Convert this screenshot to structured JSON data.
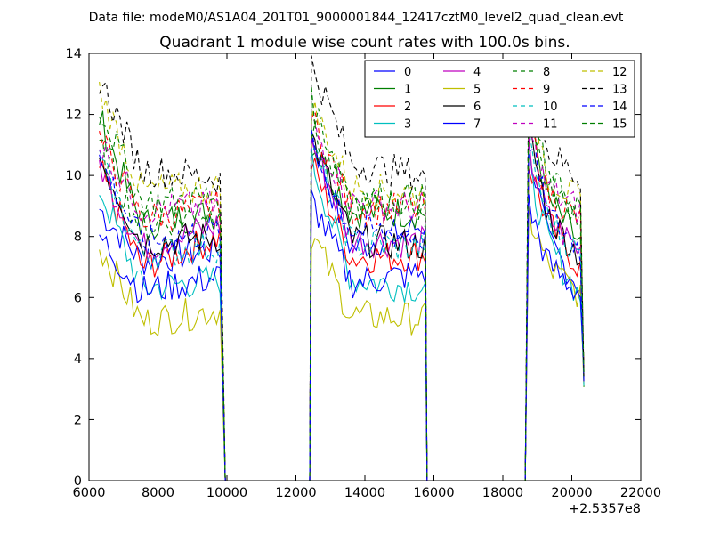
{
  "suptitle": "Data file: modeM0/AS1A04_201T01_9000001844_12417cztM0_level2_quad_clean.evt",
  "chart_data": {
    "type": "line",
    "title": "Quadrant 1 module wise count rates with 100.0s bins.",
    "xlabel": "",
    "ylabel": "",
    "xlim": [
      6000,
      22000
    ],
    "ylim": [
      0,
      14
    ],
    "x_offset_label": "+2.5357e8",
    "x_ticks": [
      6000,
      8000,
      10000,
      12000,
      14000,
      16000,
      18000,
      20000,
      22000
    ],
    "y_ticks": [
      0,
      2,
      4,
      6,
      8,
      10,
      12,
      14
    ],
    "x_tick_labels": [
      "6000",
      "8000",
      "10000",
      "12000",
      "14000",
      "16000",
      "18000",
      "20000",
      "22000"
    ],
    "y_tick_labels": [
      "0",
      "2",
      "4",
      "6",
      "8",
      "10",
      "12",
      "14"
    ],
    "grid": false,
    "legend_position": "top-right",
    "legend_columns": 4,
    "segments": [
      {
        "start": 6300,
        "end": 9800,
        "zero_after": 9950
      },
      {
        "start": 12450,
        "end": 15750,
        "zero_after": 15800
      },
      {
        "start": 18750,
        "end": 20300,
        "zero_after": null
      }
    ],
    "zero_gaps": [
      [
        9950,
        12400
      ],
      [
        15800,
        18650
      ]
    ],
    "series": [
      {
        "name": "0",
        "color": "#0000ff",
        "dash": "solid",
        "levels": [
          [
            8.9,
            7.2,
            7.6
          ],
          [
            11.3,
            7.6,
            8.4
          ],
          [
            11.0,
            7.8,
            6.2
          ]
        ]
      },
      {
        "name": "1",
        "color": "#007f00",
        "dash": "solid",
        "levels": [
          [
            11.9,
            8.4,
            8.8
          ],
          [
            11.1,
            8.8,
            8.8
          ],
          [
            12.1,
            9.2,
            7.6
          ]
        ]
      },
      {
        "name": "2",
        "color": "#ff0000",
        "dash": "solid",
        "levels": [
          [
            10.2,
            7.0,
            8.0
          ],
          [
            10.4,
            7.3,
            7.4
          ],
          [
            10.4,
            8.4,
            6.8
          ]
        ]
      },
      {
        "name": "3",
        "color": "#00bfbf",
        "dash": "solid",
        "levels": [
          [
            9.6,
            6.3,
            6.6
          ],
          [
            10.5,
            6.6,
            6.3
          ],
          [
            10.2,
            7.8,
            5.8
          ]
        ]
      },
      {
        "name": "4",
        "color": "#bf00bf",
        "dash": "solid",
        "levels": [
          [
            10.4,
            7.6,
            8.4
          ],
          [
            11.1,
            7.9,
            7.8
          ],
          [
            10.8,
            8.6,
            7.4
          ]
        ]
      },
      {
        "name": "5",
        "color": "#bfbf00",
        "dash": "solid",
        "levels": [
          [
            7.7,
            5.2,
            5.6
          ],
          [
            8.1,
            5.4,
            5.3
          ],
          [
            8.7,
            7.0,
            6.0
          ]
        ]
      },
      {
        "name": "6",
        "color": "#000000",
        "dash": "solid",
        "levels": [
          [
            10.6,
            7.8,
            8.0
          ],
          [
            11.3,
            7.9,
            7.7
          ],
          [
            11.4,
            8.7,
            7.2
          ]
        ]
      },
      {
        "name": "7",
        "color": "#0000ff",
        "dash": "solid",
        "levels": [
          [
            8.0,
            6.2,
            6.7
          ],
          [
            9.2,
            6.5,
            6.8
          ],
          [
            9.0,
            7.1,
            6.0
          ]
        ]
      },
      {
        "name": "8",
        "color": "#007f00",
        "dash": "dashed",
        "levels": [
          [
            10.9,
            8.3,
            8.9
          ],
          [
            11.4,
            9.0,
            9.1
          ],
          [
            12.0,
            9.6,
            8.6
          ]
        ]
      },
      {
        "name": "9",
        "color": "#ff0000",
        "dash": "dashed",
        "levels": [
          [
            11.2,
            8.6,
            9.0
          ],
          [
            11.9,
            8.9,
            8.9
          ],
          [
            11.6,
            9.4,
            8.4
          ]
        ]
      },
      {
        "name": "10",
        "color": "#00bfbf",
        "dash": "dashed",
        "levels": [
          [
            10.5,
            7.4,
            7.7
          ],
          [
            10.9,
            7.8,
            7.6
          ],
          [
            11.0,
            8.6,
            7.2
          ]
        ]
      },
      {
        "name": "11",
        "color": "#bf00bf",
        "dash": "dashed",
        "levels": [
          [
            11.1,
            8.9,
            9.0
          ],
          [
            11.7,
            9.1,
            8.9
          ],
          [
            11.3,
            9.5,
            8.8
          ]
        ]
      },
      {
        "name": "12",
        "color": "#bfbf00",
        "dash": "dashed",
        "levels": [
          [
            12.8,
            9.5,
            9.6
          ],
          [
            12.3,
            9.6,
            9.4
          ],
          [
            13.0,
            10.0,
            9.0
          ]
        ]
      },
      {
        "name": "13",
        "color": "#000000",
        "dash": "dashed",
        "levels": [
          [
            13.2,
            10.2,
            9.9
          ],
          [
            13.7,
            10.4,
            10.0
          ],
          [
            13.1,
            10.8,
            9.8
          ]
        ]
      },
      {
        "name": "14",
        "color": "#0000ff",
        "dash": "dashed",
        "levels": [
          [
            10.5,
            7.8,
            8.2
          ],
          [
            11.0,
            8.2,
            8.0
          ],
          [
            11.2,
            8.7,
            7.5
          ]
        ]
      },
      {
        "name": "15",
        "color": "#007f00",
        "dash": "dashed",
        "levels": [
          [
            12.3,
            9.1,
            9.3
          ],
          [
            12.4,
            9.3,
            9.2
          ],
          [
            12.6,
            9.8,
            8.9
          ]
        ]
      }
    ]
  }
}
